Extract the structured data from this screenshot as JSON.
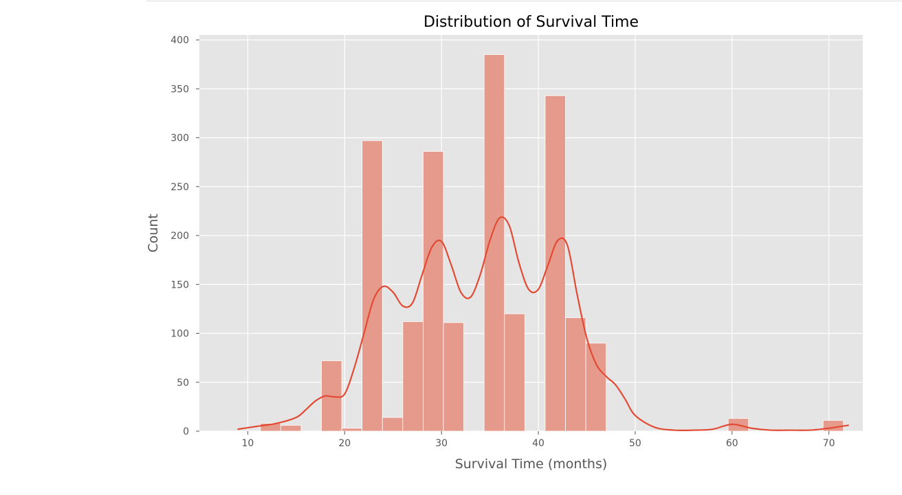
{
  "chart_data": {
    "type": "bar",
    "title": "Distribution of Survival Time",
    "xlabel": "Survival Time (months)",
    "ylabel": "Count",
    "xlim": [
      5,
      73.5
    ],
    "ylim": [
      0,
      405
    ],
    "xticks": [
      10,
      20,
      30,
      40,
      50,
      60,
      70
    ],
    "yticks": [
      0,
      50,
      100,
      150,
      200,
      250,
      300,
      350,
      400
    ],
    "grid": true,
    "bin_width": 2.1,
    "bins": [
      {
        "x0": 11.3,
        "x1": 13.4,
        "count": 8
      },
      {
        "x0": 13.4,
        "x1": 15.5,
        "count": 6
      },
      {
        "x0": 17.6,
        "x1": 19.7,
        "count": 72
      },
      {
        "x0": 19.7,
        "x1": 21.8,
        "count": 3
      },
      {
        "x0": 21.8,
        "x1": 23.9,
        "count": 297
      },
      {
        "x0": 23.9,
        "x1": 26.0,
        "count": 14
      },
      {
        "x0": 26.0,
        "x1": 28.1,
        "count": 112
      },
      {
        "x0": 28.1,
        "x1": 30.2,
        "count": 286
      },
      {
        "x0": 30.2,
        "x1": 32.3,
        "count": 111
      },
      {
        "x0": 34.4,
        "x1": 36.5,
        "count": 385
      },
      {
        "x0": 36.5,
        "x1": 38.6,
        "count": 120
      },
      {
        "x0": 40.7,
        "x1": 42.8,
        "count": 343
      },
      {
        "x0": 42.8,
        "x1": 44.9,
        "count": 116
      },
      {
        "x0": 44.9,
        "x1": 47.0,
        "count": 90
      },
      {
        "x0": 59.6,
        "x1": 61.7,
        "count": 13
      },
      {
        "x0": 69.4,
        "x1": 71.5,
        "count": 11
      }
    ],
    "kde": {
      "x": [
        9,
        11,
        13,
        15,
        16,
        17,
        18,
        19,
        20,
        21,
        22,
        23,
        24,
        25,
        26,
        27,
        28,
        29,
        30,
        31,
        32,
        33,
        34,
        35,
        36,
        37,
        38,
        39,
        40,
        41,
        42,
        43,
        44,
        45,
        46,
        47,
        48,
        49,
        50,
        52,
        54,
        56,
        58,
        60,
        62,
        64,
        66,
        68,
        70,
        72
      ],
      "y": [
        2,
        5,
        8,
        14,
        22,
        31,
        36,
        35,
        38,
        65,
        100,
        135,
        148,
        142,
        128,
        131,
        160,
        188,
        194,
        170,
        142,
        137,
        160,
        195,
        218,
        210,
        172,
        145,
        145,
        170,
        195,
        190,
        140,
        95,
        68,
        56,
        47,
        32,
        16,
        4,
        1,
        1,
        2,
        7,
        3,
        1,
        1,
        1,
        3,
        6
      ]
    },
    "colors": {
      "bar": "#e59a8c",
      "bar_edge": "#ffffff",
      "kde_line": "#e24a33",
      "plot_bg": "#e5e5e5",
      "grid": "#ffffff"
    }
  }
}
